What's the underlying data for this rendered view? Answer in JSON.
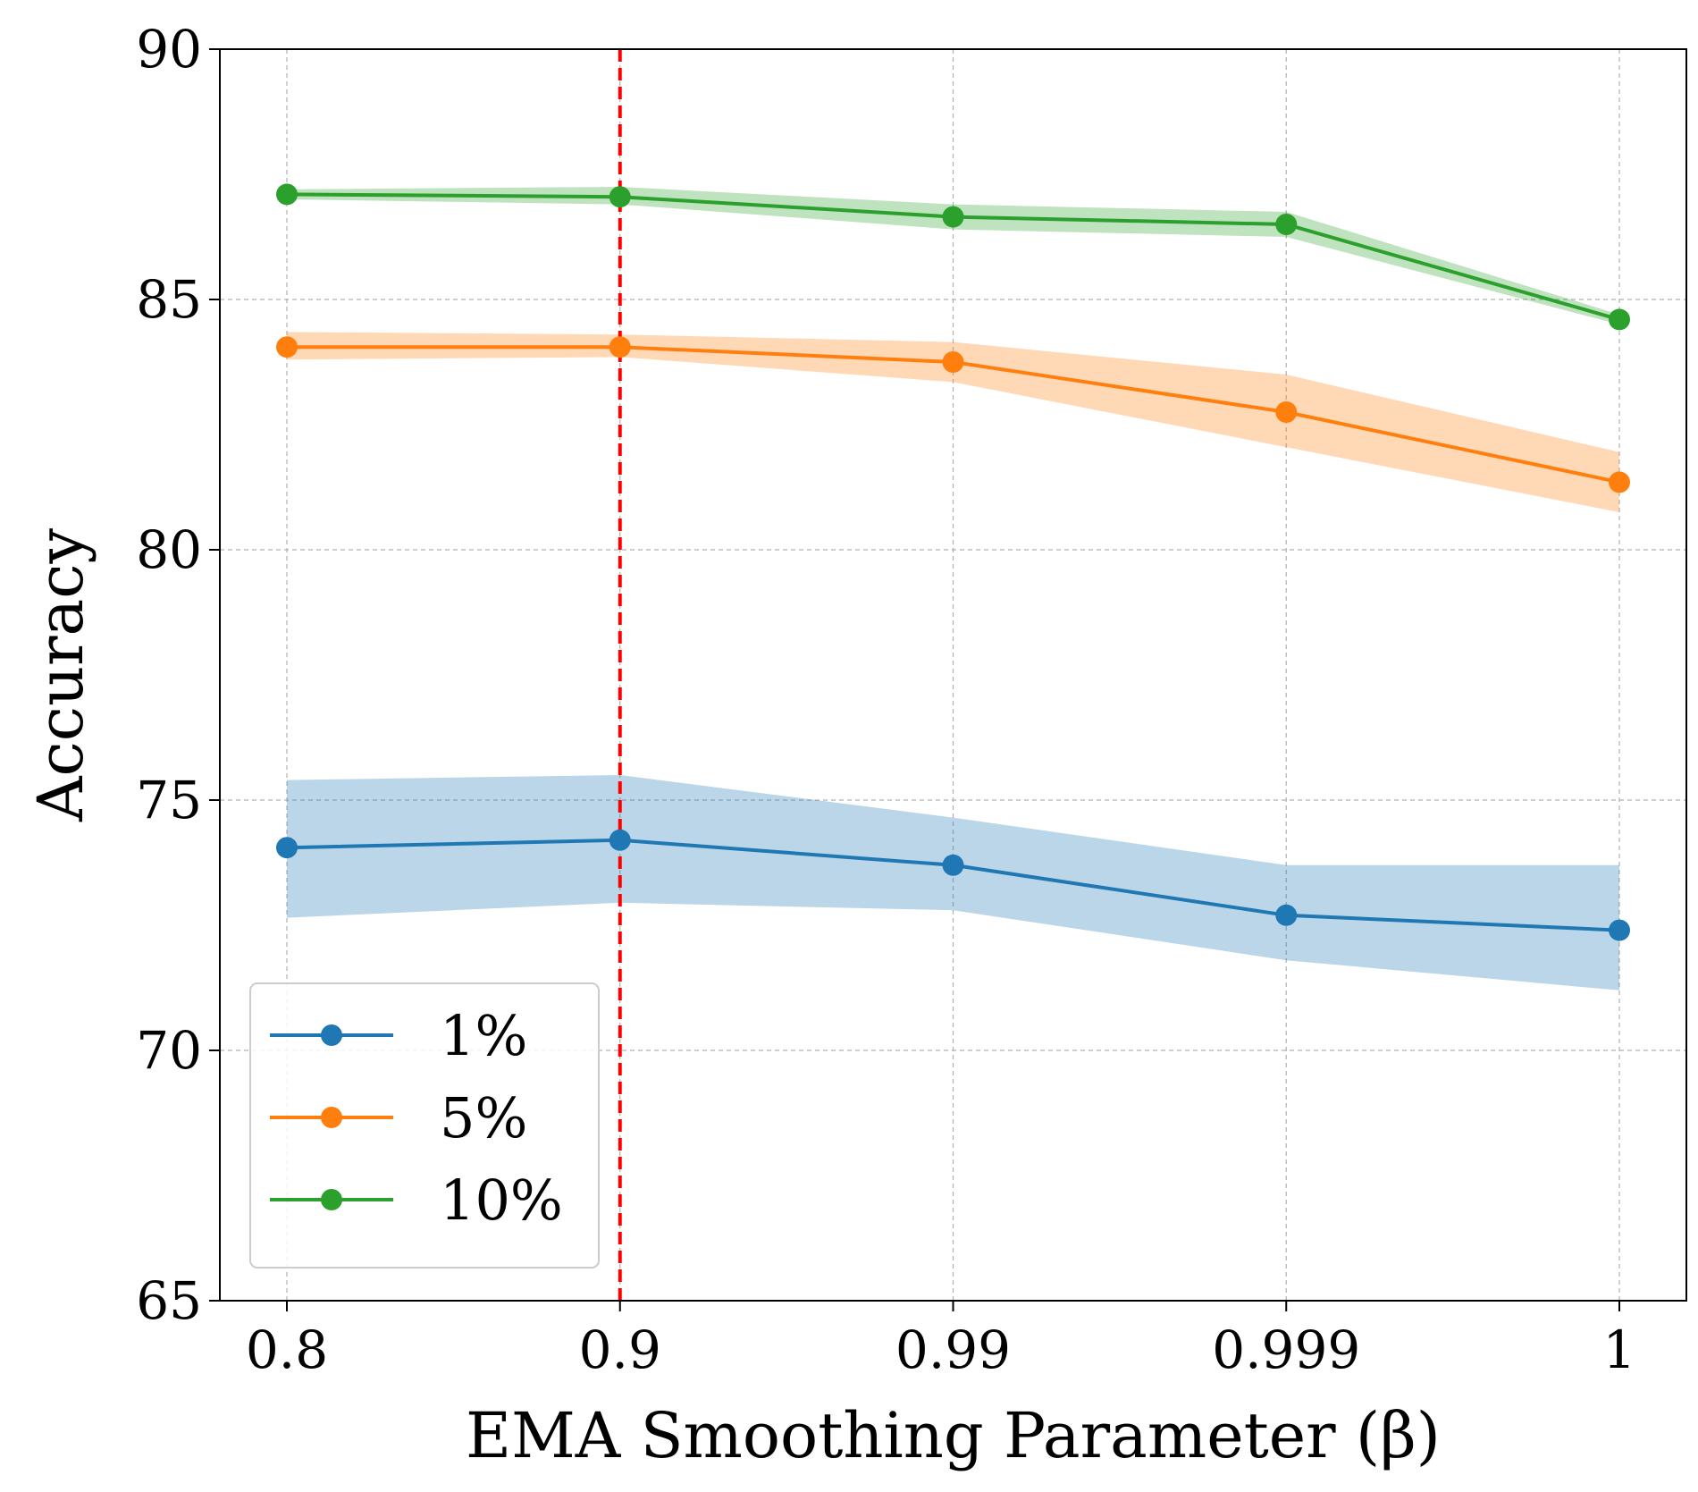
{
  "chart_data": {
    "type": "line",
    "title": "",
    "xlabel": "EMA Smoothing Parameter (β)",
    "ylabel": "Accuracy",
    "categories": [
      "0.8",
      "0.9",
      "0.99",
      "0.999",
      "1"
    ],
    "ylim": [
      65,
      90
    ],
    "yticks": [
      "65",
      "70",
      "75",
      "80",
      "85",
      "90"
    ],
    "grid": true,
    "legend_position": "lower-left",
    "reference_line": {
      "category": "0.9",
      "color": "#ff0000",
      "style": "dashed"
    },
    "series": [
      {
        "name": "1%",
        "color": "#1f77b4",
        "values": [
          74.05,
          74.2,
          73.7,
          72.7,
          72.4
        ],
        "lower": [
          72.65,
          72.95,
          72.8,
          71.8,
          71.2
        ],
        "upper": [
          75.4,
          75.5,
          74.65,
          73.7,
          73.7
        ]
      },
      {
        "name": "5%",
        "color": "#ff7f0e",
        "values": [
          84.05,
          84.05,
          83.75,
          82.75,
          81.35
        ],
        "lower": [
          83.8,
          83.85,
          83.35,
          82.05,
          80.75
        ],
        "upper": [
          84.35,
          84.3,
          84.15,
          83.5,
          81.95
        ]
      },
      {
        "name": "10%",
        "color": "#2ca02c",
        "values": [
          87.1,
          87.05,
          86.65,
          86.5,
          84.6
        ],
        "lower": [
          87.0,
          86.9,
          86.4,
          86.25,
          84.5
        ],
        "upper": [
          87.2,
          87.25,
          86.9,
          86.75,
          84.7
        ]
      }
    ]
  }
}
